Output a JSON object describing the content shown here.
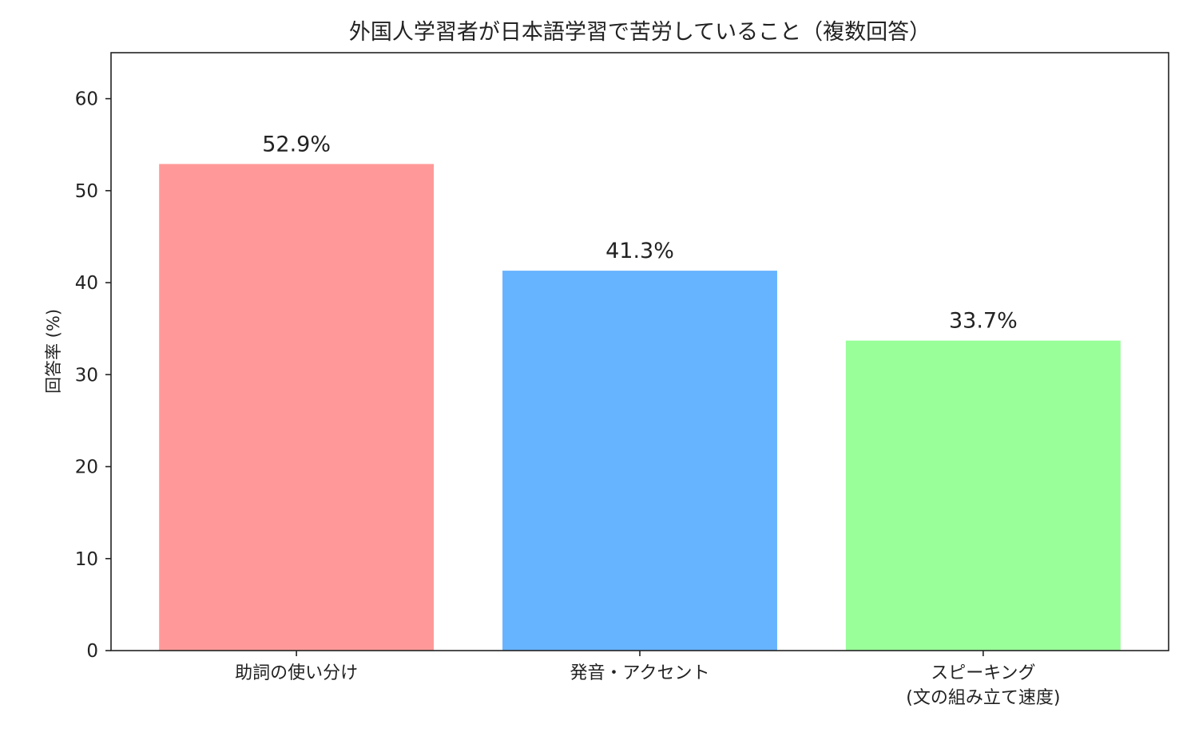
{
  "chart_data": {
    "type": "bar",
    "title": "外国人学習者が日本語学習で苦労していること（複数回答）",
    "xlabel": "",
    "ylabel": "回答率 (%)",
    "categories": [
      "助詞の使い分け",
      "発音・アクセント",
      "スピーキング\n(文の組み立て速度)"
    ],
    "values": [
      52.9,
      41.3,
      33.7
    ],
    "data_labels": [
      "52.9%",
      "41.3%",
      "33.7%"
    ],
    "colors": [
      "#ff9999",
      "#66b3ff",
      "#99ff99"
    ],
    "ylim": [
      0,
      65
    ],
    "yticks": [
      0,
      10,
      20,
      30,
      40,
      50,
      60
    ],
    "grid": false,
    "legend": "none"
  }
}
